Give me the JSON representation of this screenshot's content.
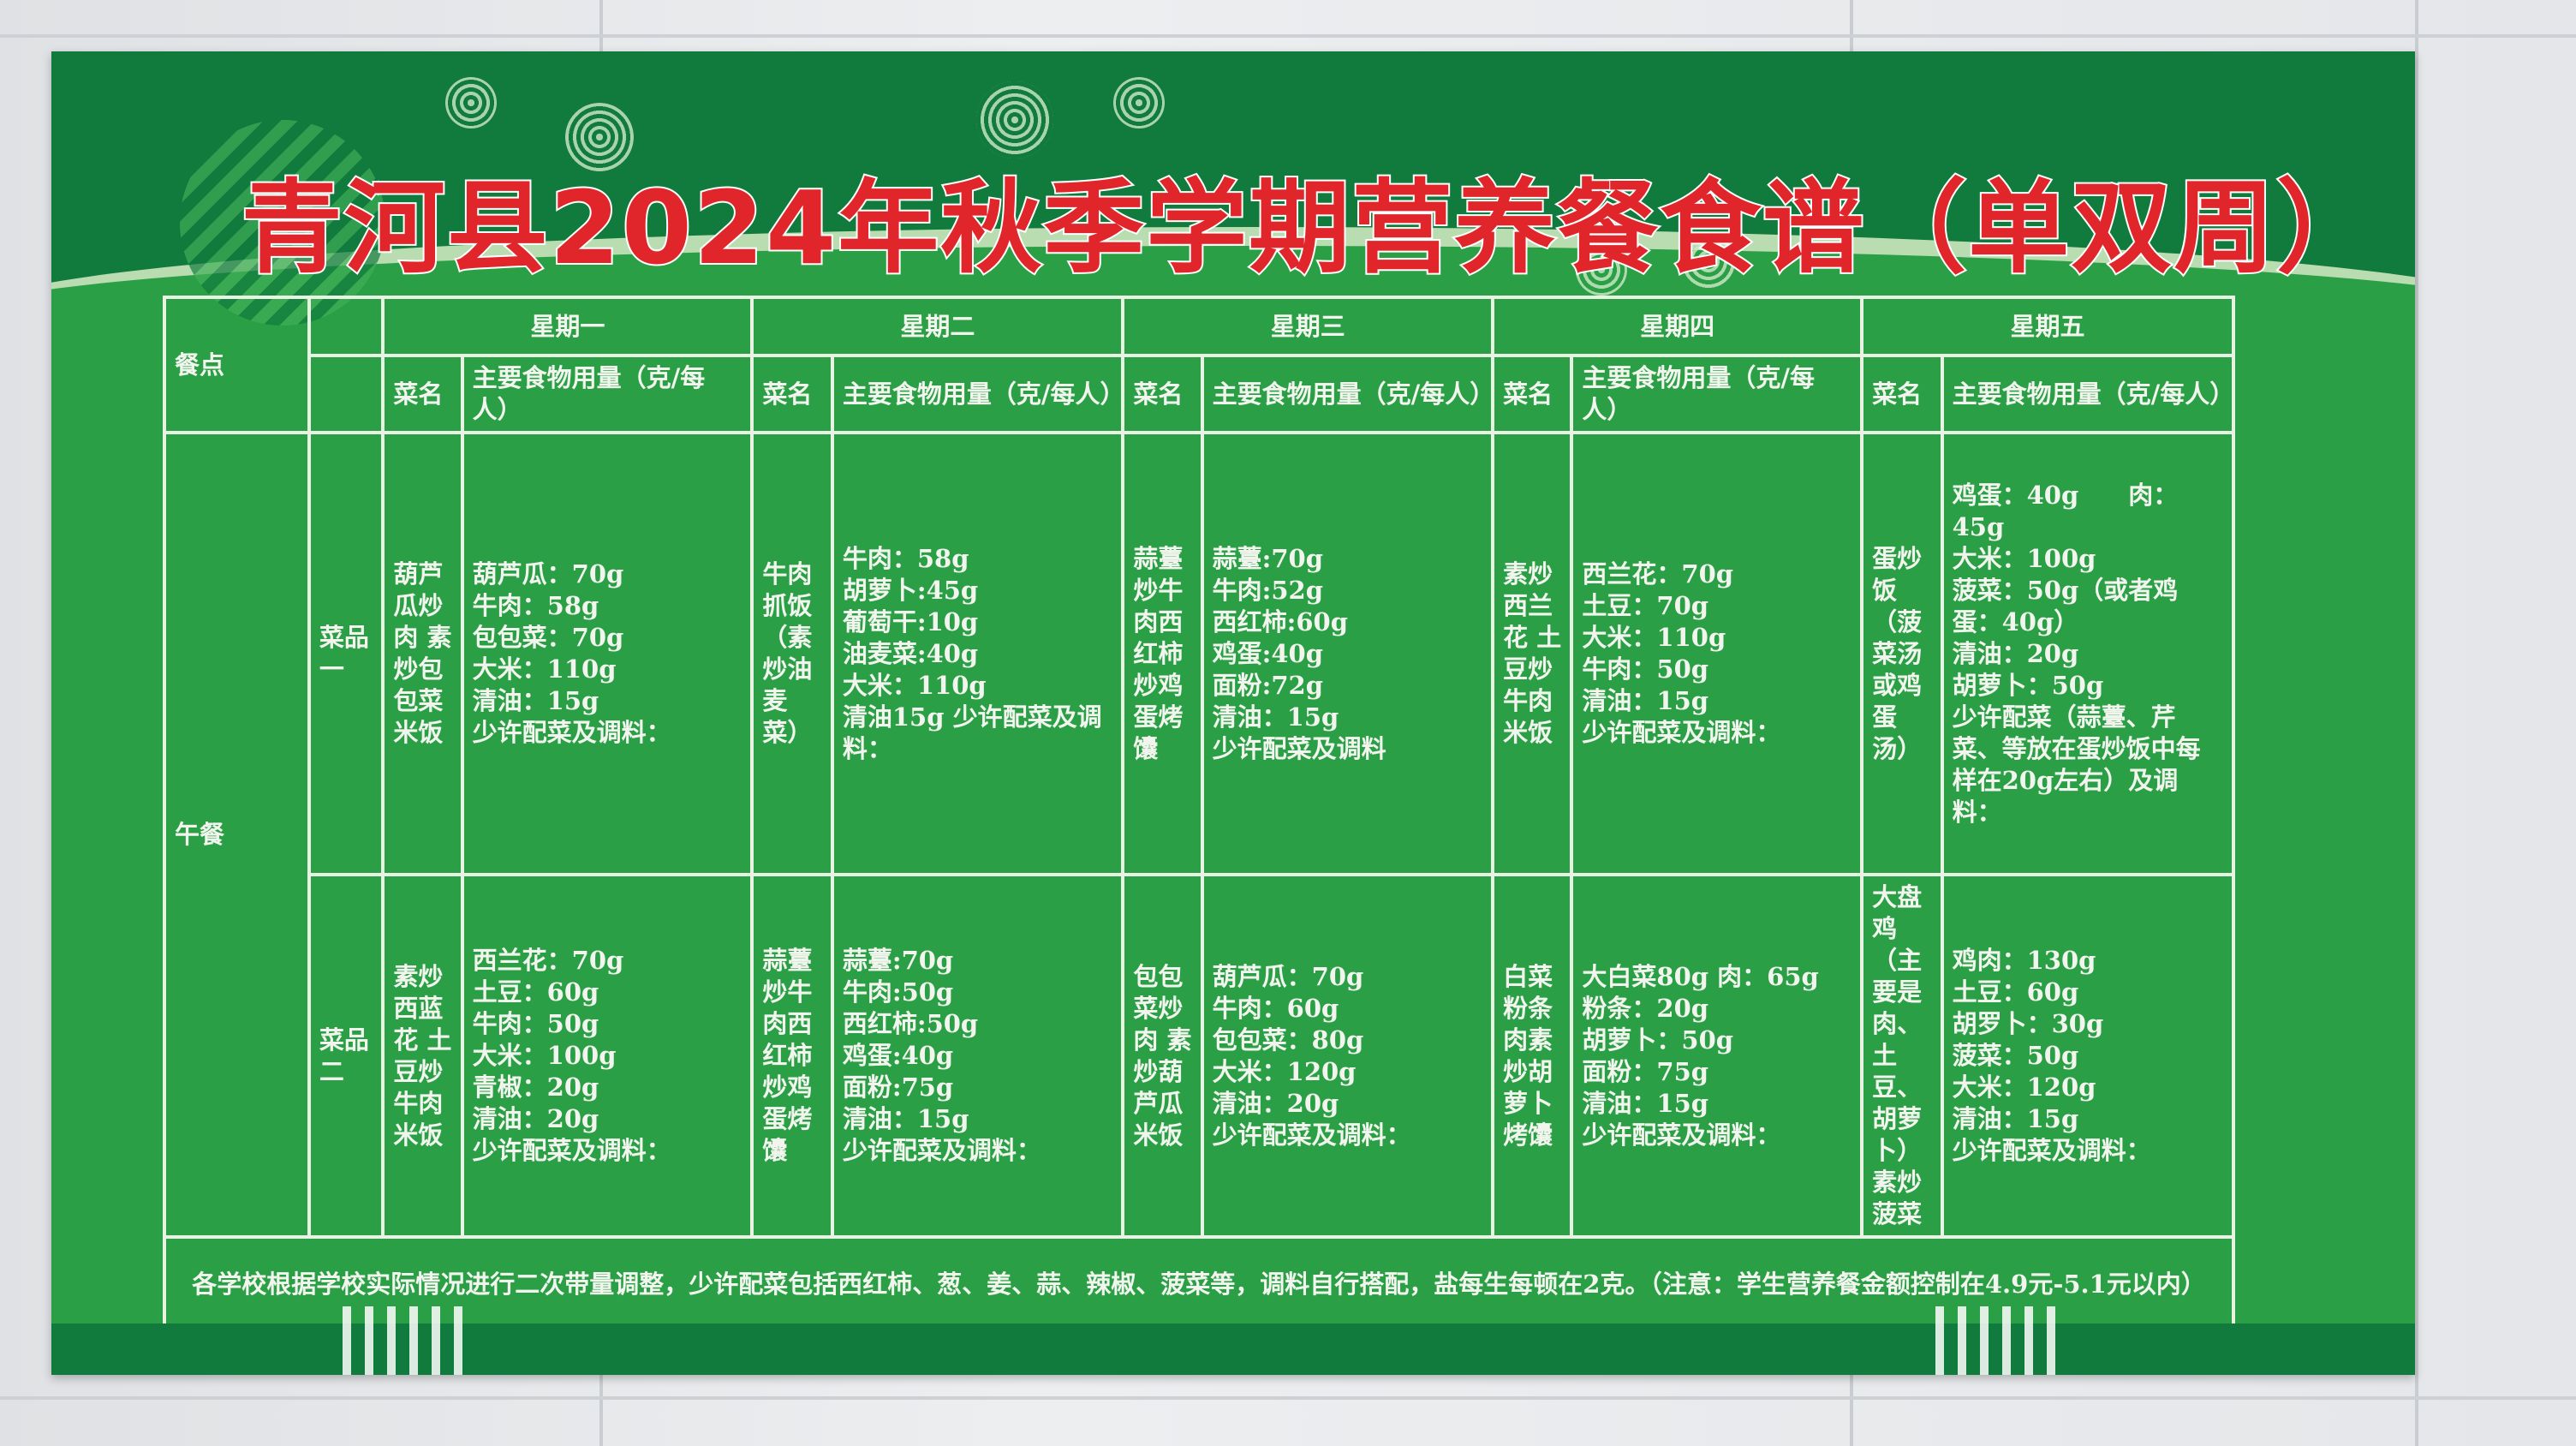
{
  "title": "青河县2024年秋季学期营养餐食谱（单双周）",
  "colors": {
    "poster_green": "#2a9f45",
    "band_dark_green": "#117a3d",
    "title_red": "#e0262a",
    "text_white": "#f1f5ee"
  },
  "table": {
    "meal_header": "餐点",
    "days": [
      {
        "day": "星期一",
        "name_header": "菜名",
        "amount_header": "主要食物用量（克/每人）"
      },
      {
        "day": "星期二",
        "name_header": "菜名",
        "amount_header": "主要食物用量（克/每人）"
      },
      {
        "day": "星期三",
        "name_header": "菜名",
        "amount_header": "主要食物用量（克/每人）"
      },
      {
        "day": "星期四",
        "name_header": "菜名",
        "amount_header": "主要食物用量（克/每人）"
      },
      {
        "day": "星期五",
        "name_header": "菜名",
        "amount_header": "主要食物用量（克/每人）"
      }
    ],
    "meal": "午餐",
    "rows": [
      {
        "label": "菜品一",
        "dishes": [
          {
            "name": "葫芦瓜炒肉 素炒包包菜米饭",
            "amounts": [
              "葫芦瓜：70g",
              "牛肉：58g",
              "包包菜：70g",
              "大米：110g",
              "清油：15g",
              "少许配菜及调料："
            ]
          },
          {
            "name": "牛肉抓饭（素炒油麦菜）",
            "amounts": [
              "牛肉：58g",
              "胡萝卜:45g",
              "葡萄干:10g",
              "油麦菜:40g",
              "大米：110g",
              "清油15g  少许配菜及调料："
            ]
          },
          {
            "name": "蒜薹炒牛肉西红柿炒鸡蛋烤馕",
            "amounts": [
              "蒜薹:70g",
              "牛肉:52g",
              "西红柿:60g",
              "鸡蛋:40g",
              "面粉:72g",
              "清油：15g",
              "少许配菜及调料"
            ]
          },
          {
            "name": "素炒西兰花 土豆炒牛肉米饭",
            "amounts": [
              "西兰花：70g",
              "土豆：70g",
              "大米：110g",
              "牛肉：50g",
              "清油：15g",
              "少许配菜及调料："
            ]
          },
          {
            "name": "蛋炒饭（菠菜汤或鸡蛋汤）",
            "amounts": [
              "鸡蛋：40g　　肉：45g",
              "大米：100g",
              "菠菜：50g（或者鸡蛋：40g）",
              "清油：20g",
              "胡萝卜：50g",
              "少许配菜（蒜薹、芹菜、等放在蛋炒饭中每样在20g左右）及调料："
            ]
          }
        ]
      },
      {
        "label": "菜品二",
        "dishes": [
          {
            "name": "素炒西蓝花 土豆炒牛肉米饭",
            "amounts": [
              "西兰花：70g",
              "土豆：60g",
              "牛肉：50g",
              "大米：100g",
              "青椒：20g",
              "清油：20g",
              "少许配菜及调料："
            ]
          },
          {
            "name": "蒜薹炒牛肉西红柿炒鸡蛋烤馕",
            "amounts": [
              "蒜薹:70g",
              "牛肉:50g",
              "西红柿:50g",
              "鸡蛋:40g",
              "面粉:75g",
              "清油：15g",
              "少许配菜及调料："
            ]
          },
          {
            "name": "包包菜炒肉 素炒葫芦瓜米饭",
            "amounts": [
              "葫芦瓜：70g",
              "牛肉：60g",
              "包包菜：80g",
              "大米：120g",
              "清油：20g",
              "少许配菜及调料："
            ]
          },
          {
            "name": "白菜粉条肉素炒胡萝卜 烤馕",
            "amounts": [
              "大白菜80g 肉：65g",
              "粉条：20g",
              "胡萝卜：50g",
              "面粉：75g",
              "清油：15g",
              "少许配菜及调料："
            ]
          },
          {
            "name": "大盘鸡（主要是肉、土豆、胡萝卜）素炒菠菜",
            "amounts": [
              "鸡肉：130g",
              "土豆：60g",
              "胡罗卜：30g",
              "菠菜：50g",
              "大米：120g",
              "清油：15g",
              "少许配菜及调料："
            ]
          }
        ]
      }
    ],
    "footer_note": "各学校根据学校实际情况进行二次带量调整，少许配菜包括西红柿、葱、姜、蒜、辣椒、菠菜等，调料自行搭配，盐每生每顿在2克。（注意：学生营养餐金额控制在4.9元-5.1元以内）"
  }
}
